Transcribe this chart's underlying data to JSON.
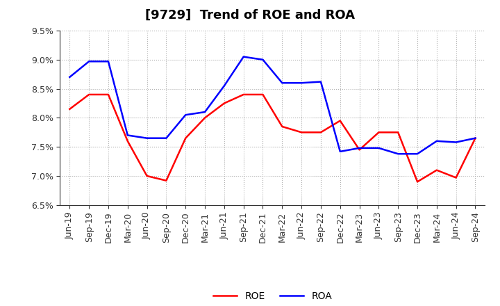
{
  "title": "[9729]  Trend of ROE and ROA",
  "labels": [
    "Jun-19",
    "Sep-19",
    "Dec-19",
    "Mar-20",
    "Jun-20",
    "Sep-20",
    "Dec-20",
    "Mar-21",
    "Jun-21",
    "Sep-21",
    "Dec-21",
    "Mar-22",
    "Jun-22",
    "Sep-22",
    "Dec-22",
    "Mar-23",
    "Jun-23",
    "Sep-23",
    "Dec-23",
    "Mar-24",
    "Jun-24",
    "Sep-24"
  ],
  "ROE": [
    8.15,
    8.4,
    8.4,
    7.6,
    7.0,
    6.92,
    7.65,
    8.0,
    8.25,
    8.4,
    8.4,
    7.85,
    7.75,
    7.75,
    7.95,
    7.45,
    7.75,
    7.75,
    6.9,
    7.1,
    6.97,
    7.65
  ],
  "ROA": [
    8.7,
    8.97,
    8.97,
    7.7,
    7.65,
    7.65,
    8.05,
    8.1,
    8.55,
    9.05,
    9.0,
    8.6,
    8.6,
    8.62,
    7.42,
    7.48,
    7.48,
    7.38,
    7.38,
    7.6,
    7.58,
    7.65
  ],
  "ROE_color": "#ff0000",
  "ROA_color": "#0000ff",
  "background_color": "#ffffff",
  "grid_color": "#b0b0b0",
  "ylim": [
    6.5,
    9.5
  ],
  "yticks": [
    6.5,
    7.0,
    7.5,
    8.0,
    8.5,
    9.0,
    9.5
  ],
  "title_fontsize": 13,
  "tick_fontsize": 9,
  "linewidth": 1.8
}
